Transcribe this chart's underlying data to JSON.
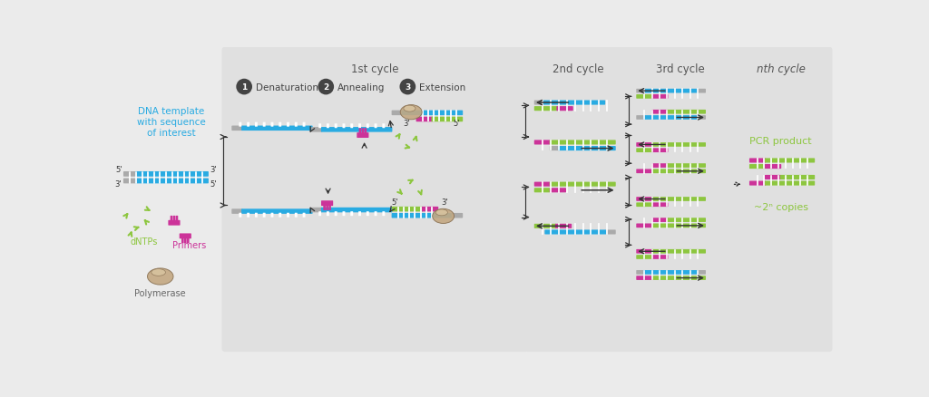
{
  "bg_color": "#ebebeb",
  "panel_bg": "#e0e0e0",
  "white": "#ffffff",
  "cyan": "#29ABE2",
  "gray": "#aaaaaa",
  "magenta": "#CC3399",
  "green": "#8DC63F",
  "tan": "#C8A882",
  "dark": "#333333",
  "title_1st": "1st cycle",
  "title_2nd": "2nd cycle",
  "title_3rd": "3rd cycle",
  "title_nth": "nth cycle",
  "step1": "Denaturation",
  "step2": "Annealing",
  "step3": "Extension",
  "label_dna": "DNA template\nwith sequence\nof interest",
  "label_dntps": "dNTPs",
  "label_primers": "Primers",
  "label_polymerase": "Polymerase",
  "label_pcr": "PCR product",
  "label_copies": "~2ⁿ copies",
  "fig_width": 10.24,
  "fig_height": 4.39
}
